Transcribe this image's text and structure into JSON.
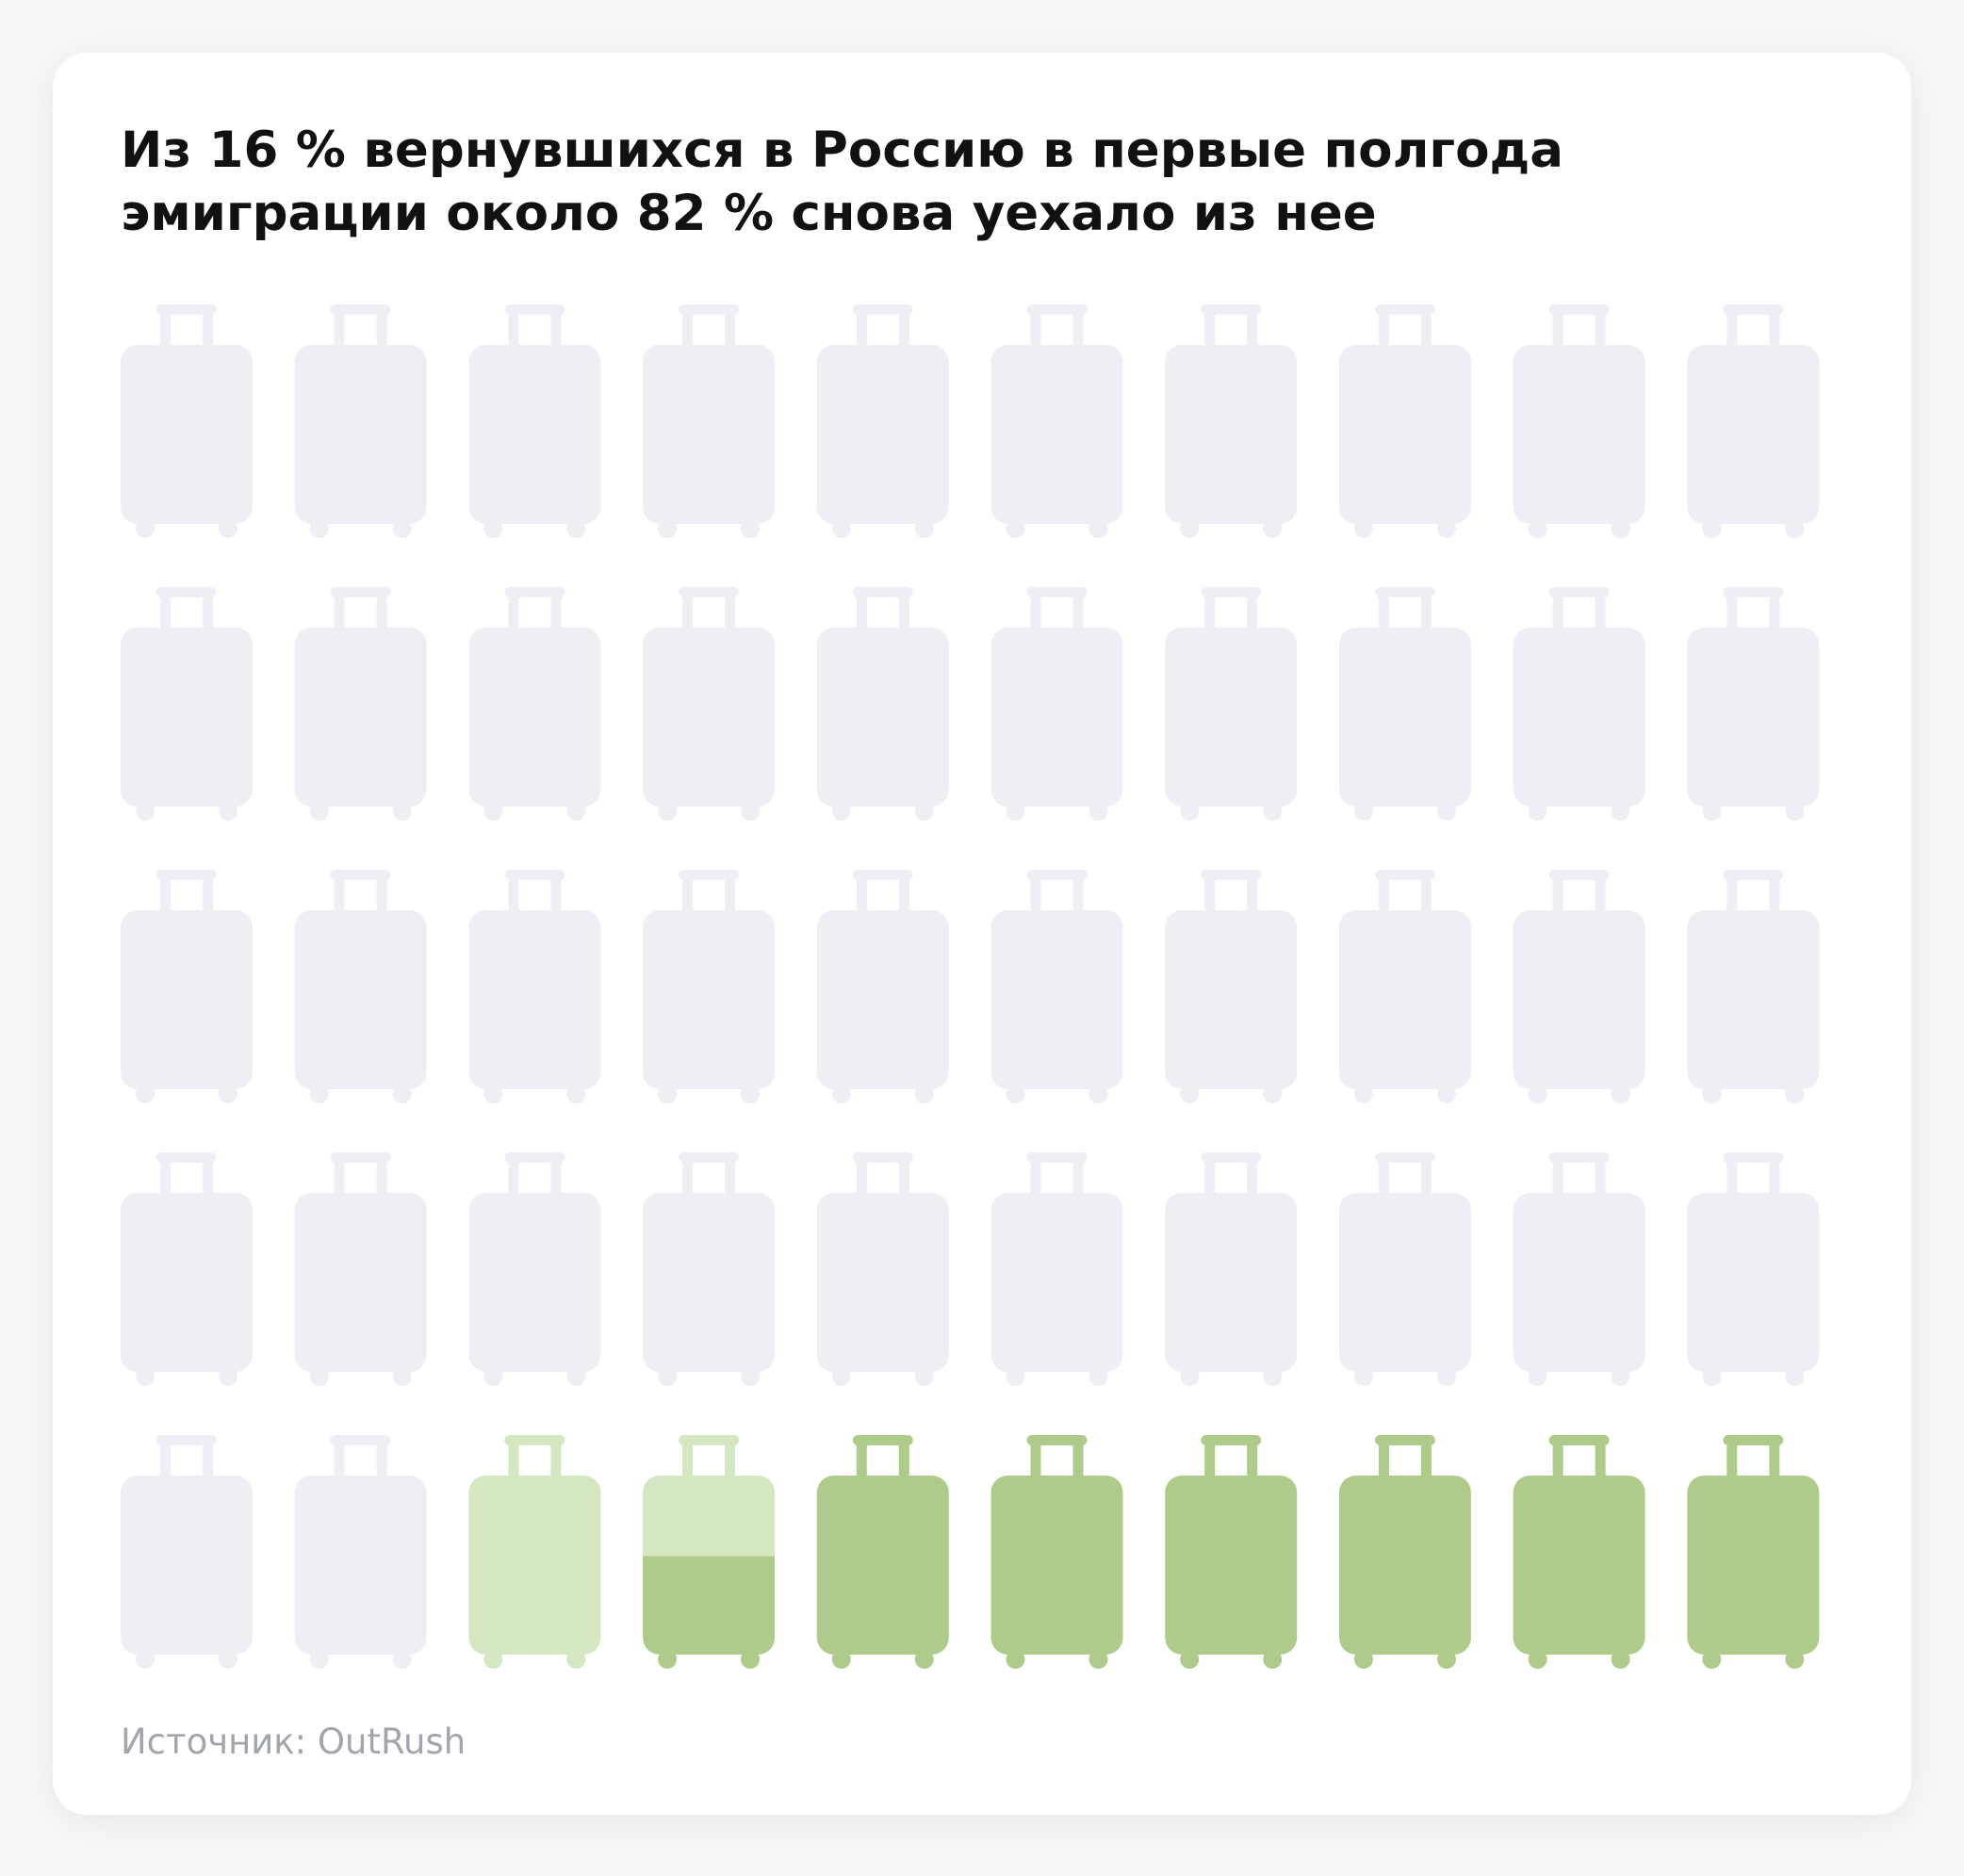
{
  "title": "Из 16 % вернувшихся в Россию в первые полгода\nэмиграции около 82 % снова уехало из нее",
  "source": "Источник: OutRush",
  "chart_data": {
    "type": "pictogram",
    "icon": "suitcase-icon",
    "total_icons": 50,
    "columns": 10,
    "rows": 5,
    "segments": [
      {
        "value": 84,
        "color": "#eeeff4"
      },
      {
        "value": 2.9,
        "color": "#d4e7c2"
      },
      {
        "value": 13.1,
        "color": "#aecb8b"
      }
    ]
  }
}
